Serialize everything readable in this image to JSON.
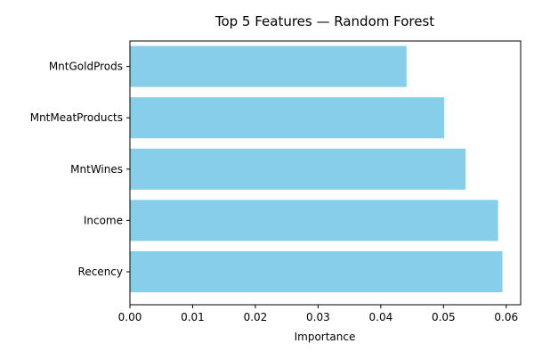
{
  "chart_data": {
    "type": "bar",
    "orientation": "horizontal",
    "title": "Top 5 Features — Random Forest",
    "xlabel": "Importance",
    "ylabel": "",
    "categories": [
      "Recency",
      "Income",
      "MntWines",
      "MntMeatProducts",
      "MntGoldProds"
    ],
    "values": [
      0.0594,
      0.0587,
      0.0535,
      0.0501,
      0.0441
    ],
    "xlim": [
      0.0,
      0.0623
    ],
    "xticks": [
      "0.00",
      "0.01",
      "0.02",
      "0.03",
      "0.04",
      "0.05",
      "0.06"
    ],
    "tick_values": [
      0.0,
      0.01,
      0.02,
      0.03,
      0.04,
      0.05,
      0.06
    ],
    "bar_color": "#87ceeb",
    "grid": false,
    "legend": "none"
  }
}
